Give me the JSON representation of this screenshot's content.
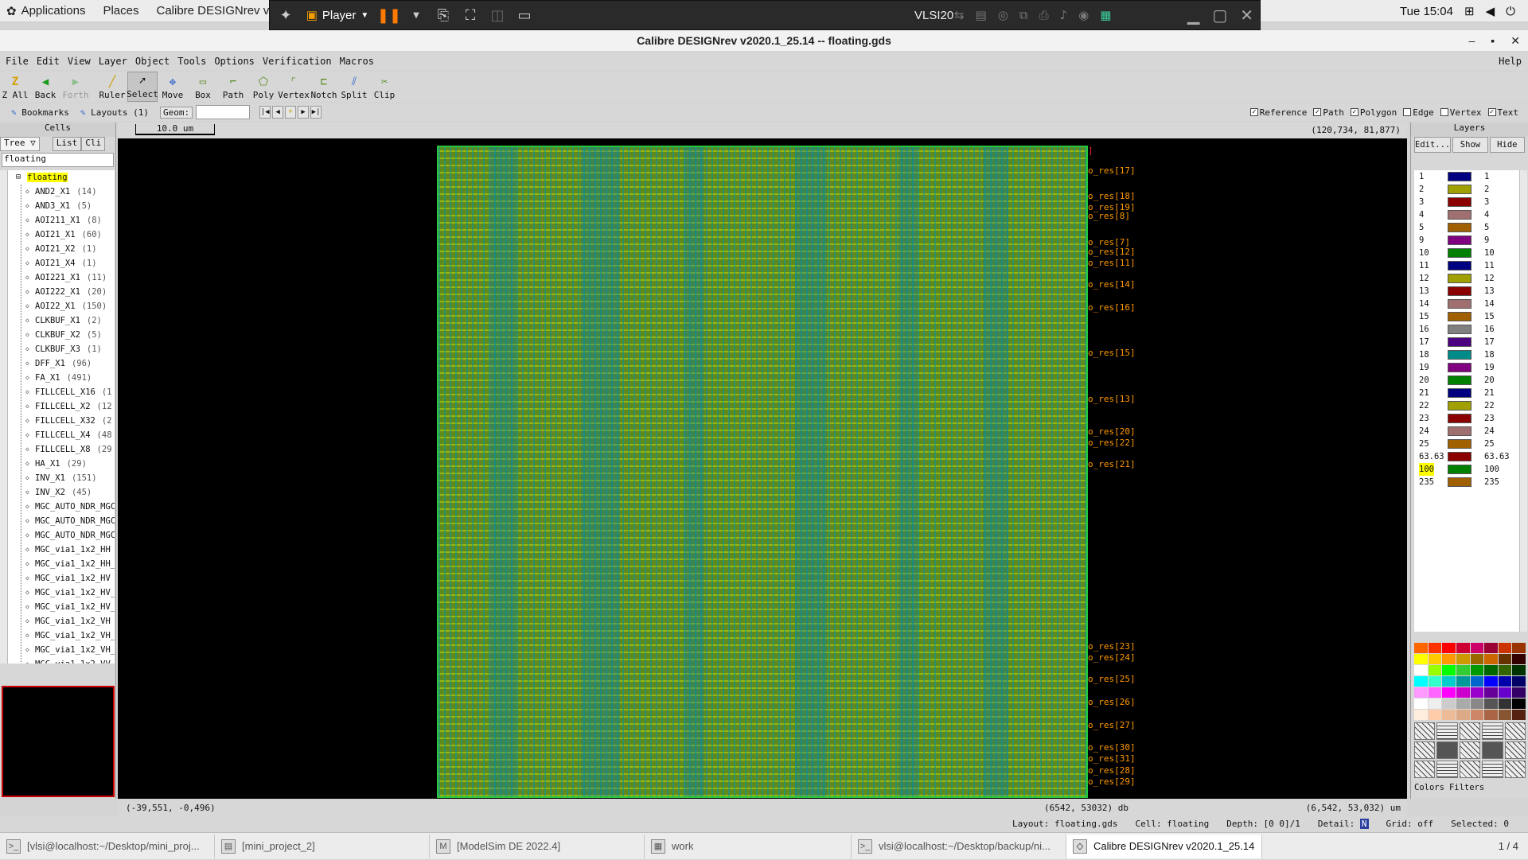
{
  "topbar": {
    "applications": "Applications",
    "places": "Places",
    "app_title": "Calibre DESIGNrev v20",
    "clock": "Tue 15:04"
  },
  "player": {
    "label": "Player",
    "vm_name": "VLSI20"
  },
  "window": {
    "title": "Calibre DESIGNrev v2020.1_25.14  --  floating.gds"
  },
  "menu": {
    "items": [
      "File",
      "Edit",
      "View",
      "Layer",
      "Object",
      "Tools",
      "Options",
      "Verification",
      "Macros"
    ],
    "help": "Help"
  },
  "toolbar": {
    "tools": [
      {
        "label": "Z All",
        "icon": "zoom-all-icon"
      },
      {
        "label": "Back",
        "icon": "back-arrow-icon"
      },
      {
        "label": "Forth",
        "icon": "forward-arrow-icon",
        "disabled": true
      },
      {
        "label": "Ruler",
        "icon": "ruler-icon"
      },
      {
        "label": "Select",
        "icon": "select-cursor-icon",
        "active": true
      },
      {
        "label": "Move",
        "icon": "move-icon"
      },
      {
        "label": "Box",
        "icon": "box-icon"
      },
      {
        "label": "Path",
        "icon": "path-icon"
      },
      {
        "label": "Poly",
        "icon": "polygon-icon"
      },
      {
        "label": "Vertex",
        "icon": "vertex-icon"
      },
      {
        "label": "Notch",
        "icon": "notch-icon"
      },
      {
        "label": "Split",
        "icon": "split-icon"
      },
      {
        "label": "Clip",
        "icon": "clip-icon"
      }
    ]
  },
  "bar3": {
    "bookmarks": "Bookmarks",
    "layouts": "Layouts (1)",
    "geom": "Geom:",
    "checks": [
      {
        "label": "Reference",
        "checked": true
      },
      {
        "label": "Path",
        "checked": true
      },
      {
        "label": "Polygon",
        "checked": true
      },
      {
        "label": "Edge",
        "checked": false
      },
      {
        "label": "Vertex",
        "checked": false
      },
      {
        "label": "Text",
        "checked": true
      }
    ]
  },
  "cells": {
    "header": "Cells",
    "tabs": [
      "Tree",
      "List",
      "Cli"
    ],
    "filter": "floating",
    "root": "floating",
    "items": [
      {
        "name": "AND2_X1",
        "count": "(14)"
      },
      {
        "name": "AND3_X1",
        "count": "(5)"
      },
      {
        "name": "AOI211_X1",
        "count": "(8)"
      },
      {
        "name": "AOI21_X1",
        "count": "(60)"
      },
      {
        "name": "AOI21_X2",
        "count": "(1)"
      },
      {
        "name": "AOI21_X4",
        "count": "(1)"
      },
      {
        "name": "AOI221_X1",
        "count": "(11)"
      },
      {
        "name": "AOI222_X1",
        "count": "(20)"
      },
      {
        "name": "AOI22_X1",
        "count": "(150)"
      },
      {
        "name": "CLKBUF_X1",
        "count": "(2)"
      },
      {
        "name": "CLKBUF_X2",
        "count": "(5)"
      },
      {
        "name": "CLKBUF_X3",
        "count": "(1)"
      },
      {
        "name": "DFF_X1",
        "count": "(96)"
      },
      {
        "name": "FA_X1",
        "count": "(491)"
      },
      {
        "name": "FILLCELL_X16",
        "count": "(1"
      },
      {
        "name": "FILLCELL_X2",
        "count": "(12"
      },
      {
        "name": "FILLCELL_X32",
        "count": "(2"
      },
      {
        "name": "FILLCELL_X4",
        "count": "(48"
      },
      {
        "name": "FILLCELL_X8",
        "count": "(29"
      },
      {
        "name": "HA_X1",
        "count": "(29)"
      },
      {
        "name": "INV_X1",
        "count": "(151)"
      },
      {
        "name": "INV_X2",
        "count": "(45)"
      },
      {
        "name": "MGC_AUTO_NDR_MGC",
        "count": ""
      },
      {
        "name": "MGC_AUTO_NDR_MGC",
        "count": ""
      },
      {
        "name": "MGC_AUTO_NDR_MGC",
        "count": ""
      },
      {
        "name": "MGC_via1_1x2_HH",
        "count": ""
      },
      {
        "name": "MGC_via1_1x2_HH_",
        "count": ""
      },
      {
        "name": "MGC_via1_1x2_HV",
        "count": ""
      },
      {
        "name": "MGC_via1_1x2_HV_",
        "count": ""
      },
      {
        "name": "MGC_via1_1x2_HV_",
        "count": ""
      },
      {
        "name": "MGC_via1_1x2_VH",
        "count": ""
      },
      {
        "name": "MGC_via1_1x2_VH_",
        "count": ""
      },
      {
        "name": "MGC_via1_1x2_VH_",
        "count": ""
      },
      {
        "name": "MGC_via1_1x2_VV",
        "count": ""
      }
    ]
  },
  "ruler": {
    "scale": "10.0 um",
    "coord": "(120,734, 81,877)"
  },
  "pins": [
    {
      "label": "o_res[17]",
      "row": 0.03
    },
    {
      "label": "o_res[18]",
      "row": 0.07
    },
    {
      "label": "o_res[19]",
      "row": 0.086
    },
    {
      "label": "o_res[8]",
      "row": 0.1
    },
    {
      "label": "o_res[7]",
      "row": 0.14
    },
    {
      "label": "o_res[12]",
      "row": 0.155
    },
    {
      "label": "o_res[11]",
      "row": 0.172
    },
    {
      "label": "o_res[14]",
      "row": 0.205
    },
    {
      "label": "o_res[16]",
      "row": 0.24
    },
    {
      "label": "o_res[15]",
      "row": 0.31
    },
    {
      "label": "o_res[13]",
      "row": 0.38
    },
    {
      "label": "o_res[20]",
      "row": 0.43
    },
    {
      "label": "o_res[22]",
      "row": 0.447
    },
    {
      "label": "o_res[21]",
      "row": 0.48
    },
    {
      "label": "o_res[23]",
      "row": 0.76
    },
    {
      "label": "o_res[24]",
      "row": 0.777
    },
    {
      "label": "o_res[25]",
      "row": 0.81
    },
    {
      "label": "o_res[26]",
      "row": 0.845
    },
    {
      "label": "o_res[27]",
      "row": 0.88
    },
    {
      "label": "o_res[30]",
      "row": 0.915
    },
    {
      "label": "o_res[31]",
      "row": 0.932
    },
    {
      "label": "o_res[28]",
      "row": 0.95
    },
    {
      "label": "o_res[29]",
      "row": 0.967
    }
  ],
  "layers": {
    "header": "Layers",
    "buttons": [
      "Edit...",
      "Show",
      "Hide"
    ],
    "items": [
      {
        "id": "1",
        "color": "#000080"
      },
      {
        "id": "2",
        "color": "#a0a000"
      },
      {
        "id": "3",
        "color": "#8b0000"
      },
      {
        "id": "4",
        "color": "#a07070"
      },
      {
        "id": "5",
        "color": "#a06000"
      },
      {
        "id": "9",
        "color": "#800080"
      },
      {
        "id": "10",
        "color": "#008000"
      },
      {
        "id": "11",
        "color": "#000080"
      },
      {
        "id": "12",
        "color": "#a0a000"
      },
      {
        "id": "13",
        "color": "#8b0000"
      },
      {
        "id": "14",
        "color": "#a07070"
      },
      {
        "id": "15",
        "color": "#a06000"
      },
      {
        "id": "16",
        "color": "#808080"
      },
      {
        "id": "17",
        "color": "#4b0082"
      },
      {
        "id": "18",
        "color": "#008b8b"
      },
      {
        "id": "19",
        "color": "#800080"
      },
      {
        "id": "20",
        "color": "#008000"
      },
      {
        "id": "21",
        "color": "#000080"
      },
      {
        "id": "22",
        "color": "#a0a000"
      },
      {
        "id": "23",
        "color": "#8b0000"
      },
      {
        "id": "24",
        "color": "#a07070"
      },
      {
        "id": "25",
        "color": "#a06000"
      },
      {
        "id": "63.63",
        "color": "#8b0000"
      },
      {
        "id": "100",
        "color": "#008000",
        "selected": true
      },
      {
        "id": "235",
        "color": "#a06000"
      }
    ],
    "tabs": [
      "Colors",
      "Filters"
    ]
  },
  "status": {
    "cursor": "(-39,551, -0,496)",
    "db": "(6542, 53032) db",
    "um": "(6,542, 53,032) um",
    "layout": "Layout: floating.gds",
    "cell": "Cell: floating",
    "depth": "Depth: [0 0]/1",
    "detail": "Detail:",
    "grid": "Grid: off",
    "selected": "Selected: 0"
  },
  "taskbar": {
    "tasks": [
      {
        "label": "[vlsi@localhost:~/Desktop/mini_proj...",
        "icon": "terminal-icon"
      },
      {
        "label": "[mini_project_2]",
        "icon": "folder-icon"
      },
      {
        "label": "[ModelSim DE 2022.4]",
        "icon": "modelsim-icon"
      },
      {
        "label": "work",
        "icon": "document-icon"
      },
      {
        "label": "vlsi@localhost:~/Desktop/backup/ni...",
        "icon": "terminal-icon"
      },
      {
        "label": "Calibre DESIGNrev v2020.1_25.14",
        "icon": "calibre-icon",
        "active": true
      }
    ],
    "pager": "1 / 4"
  }
}
